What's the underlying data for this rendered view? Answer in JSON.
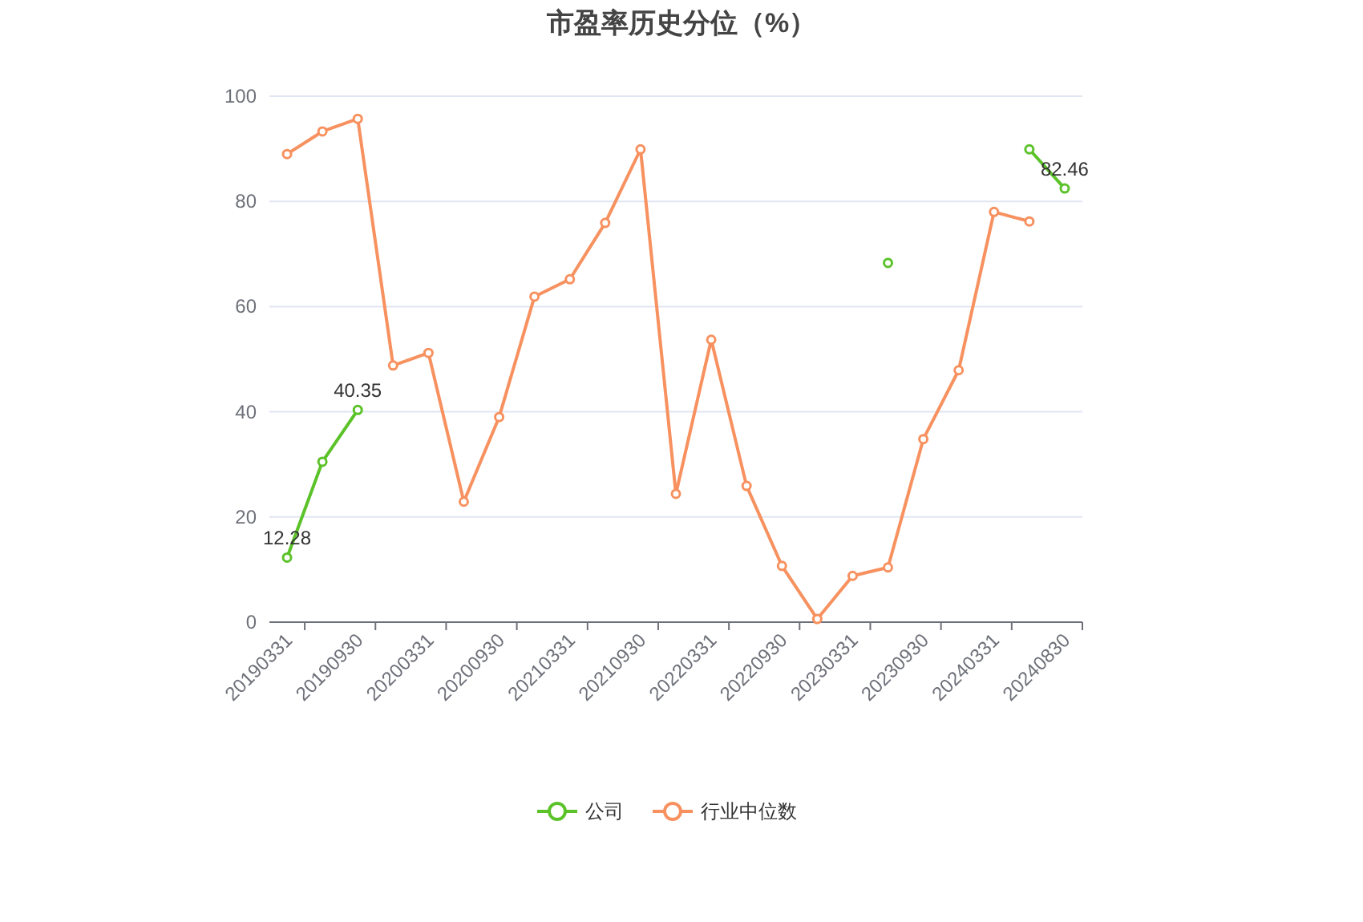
{
  "chart_data": {
    "type": "line",
    "title": "市盈率历史分位（%）",
    "categories": [
      "20190331",
      null,
      "20190930",
      null,
      "20200331",
      null,
      "20200930",
      null,
      "20210331",
      null,
      "20210930",
      null,
      "20220331",
      null,
      "20220930",
      null,
      "20230331",
      null,
      "20230930",
      null,
      "20240331",
      null,
      "20240830"
    ],
    "series": [
      {
        "name": "公司",
        "color": "#5cc22a",
        "values": [
          12.28,
          30.5,
          40.35,
          null,
          null,
          null,
          null,
          null,
          null,
          null,
          null,
          null,
          null,
          null,
          null,
          null,
          null,
          68.3,
          null,
          null,
          null,
          89.9,
          82.46
        ],
        "value_labels": [
          "12.28",
          null,
          "40.35",
          null,
          null,
          null,
          null,
          null,
          null,
          null,
          null,
          null,
          null,
          null,
          null,
          null,
          null,
          null,
          null,
          null,
          null,
          null,
          "82.46"
        ]
      },
      {
        "name": "行业中位数",
        "color": "#f7915f",
        "values": [
          89,
          93.3,
          95.7,
          48.8,
          51.2,
          22.9,
          39,
          61.9,
          65.2,
          75.9,
          89.9,
          24.4,
          53.7,
          25.9,
          10.7,
          0.6,
          8.8,
          10.4,
          34.8,
          47.9,
          78,
          76.2,
          null
        ]
      }
    ],
    "ylim": [
      0,
      100
    ],
    "yticks": [
      0,
      20,
      40,
      60,
      80,
      100
    ],
    "grid": "y",
    "legend": "bottom",
    "marker": "circle"
  }
}
